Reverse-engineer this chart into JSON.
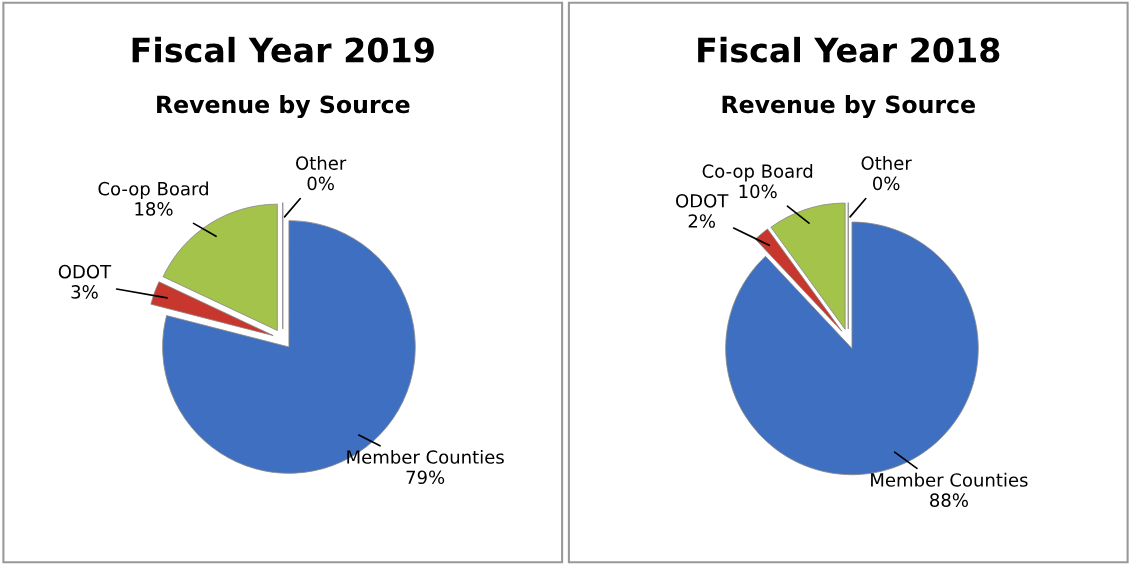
{
  "chart_data": [
    {
      "type": "pie",
      "title": "Fiscal Year 2019",
      "subtitle": "Revenue by Source",
      "categories": [
        "Other",
        "Member Counties",
        "ODOT",
        "Co-op Board"
      ],
      "values": [
        0,
        79,
        3,
        18
      ],
      "colors": [
        "#e8e8f0",
        "#3f6fc0",
        "#c8372d",
        "#a4c34a"
      ],
      "value_labels": [
        "0%",
        "79%",
        "3%",
        "18%"
      ]
    },
    {
      "type": "pie",
      "title": "Fiscal Year 2018",
      "subtitle": "Revenue by Source",
      "categories": [
        "Other",
        "Member Counties",
        "ODOT",
        "Co-op Board"
      ],
      "values": [
        0,
        88,
        2,
        10
      ],
      "colors": [
        "#e8e8f0",
        "#3f6fc0",
        "#c8372d",
        "#a4c34a"
      ],
      "value_labels": [
        "0%",
        "88%",
        "2%",
        "10%"
      ]
    }
  ]
}
